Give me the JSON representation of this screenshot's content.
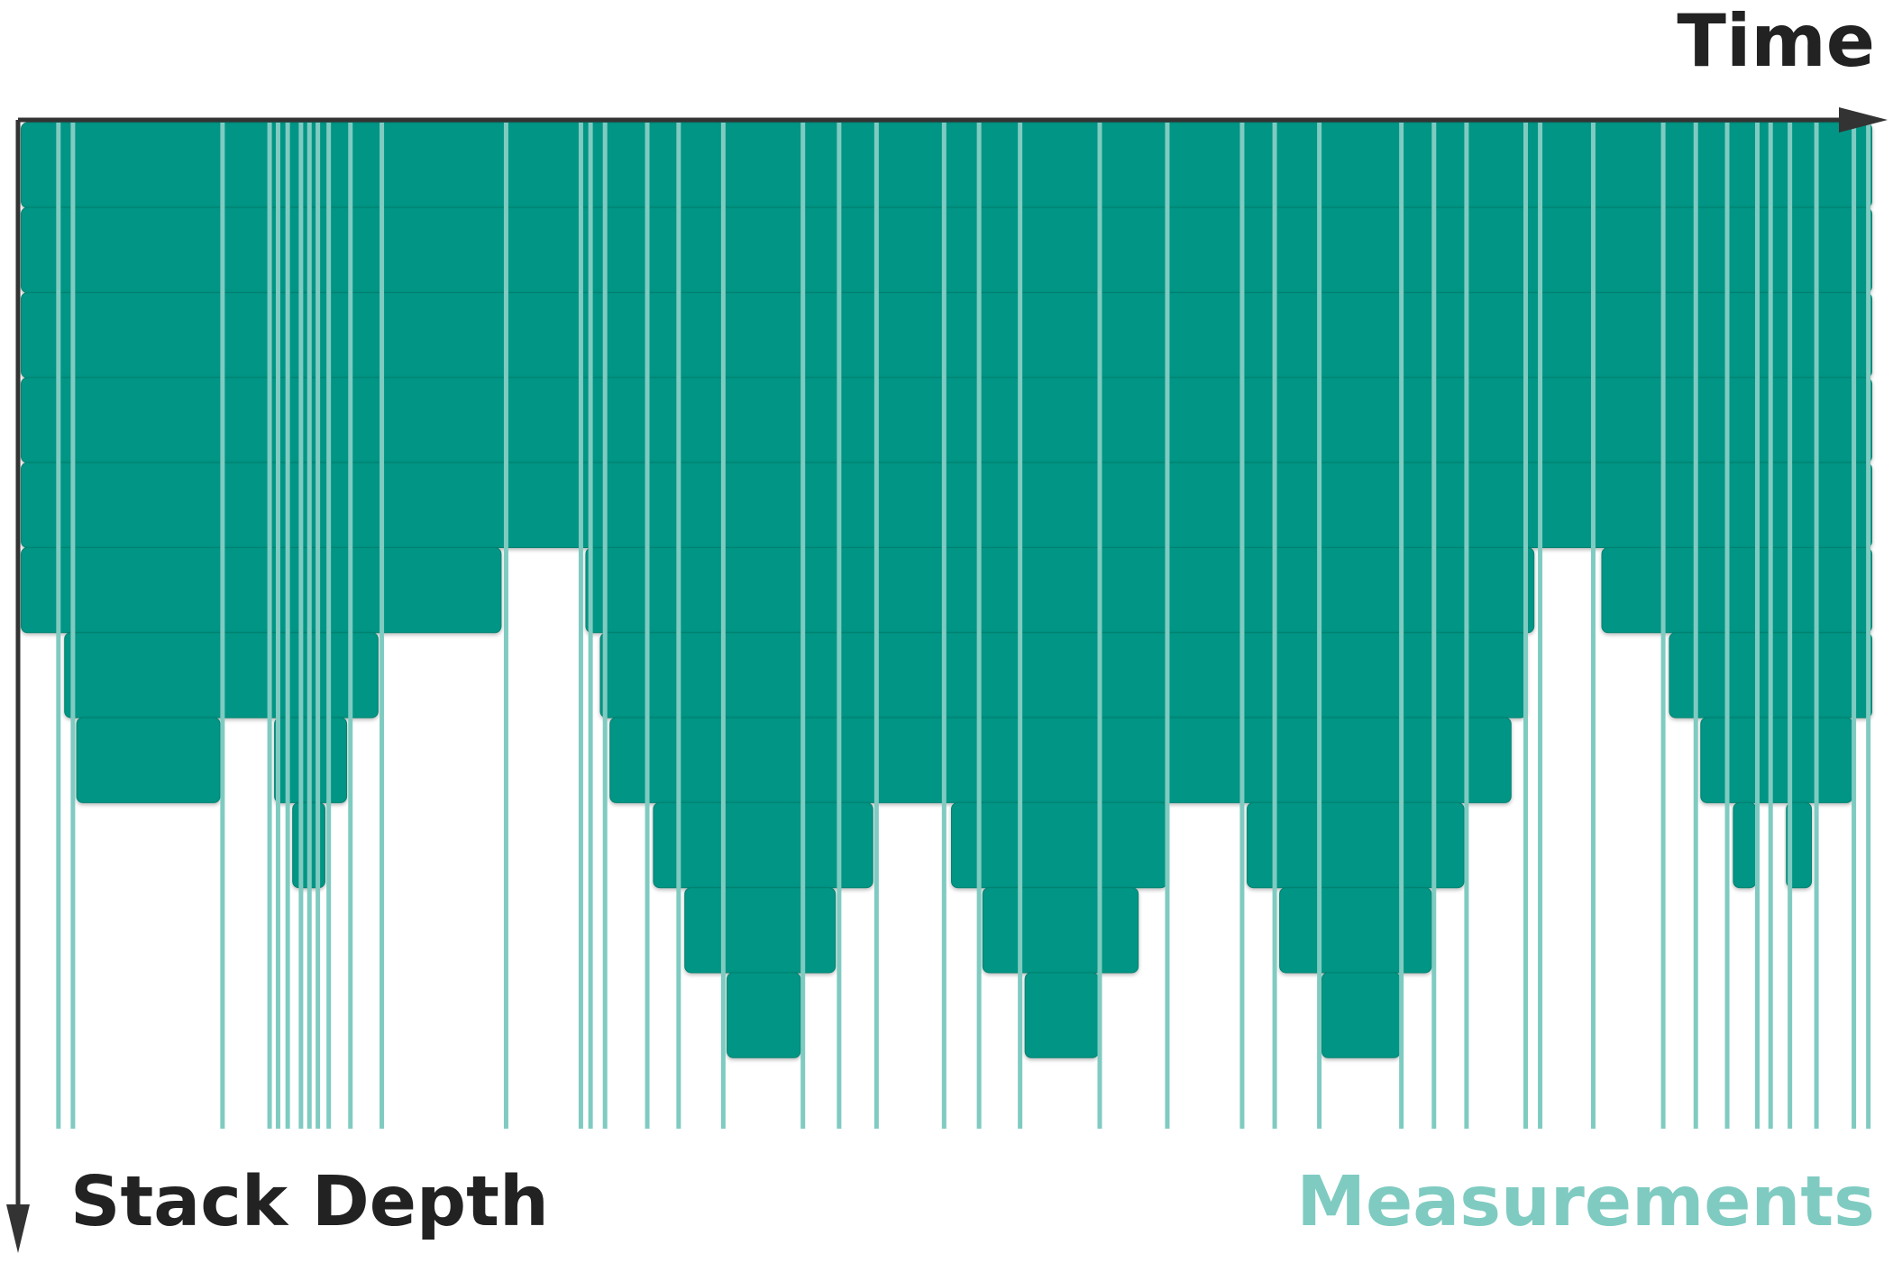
{
  "labels": {
    "time": "Time",
    "stack_depth": "Stack Depth",
    "measurements": "Measurements"
  },
  "colors": {
    "frame": "#009585",
    "frame_edge": "#00816f",
    "measurement": "#7fcbc1",
    "axis": "#333333",
    "text": "#222222"
  },
  "time_extent": [
    0,
    1536
  ],
  "max_depth": 11,
  "frames": [
    {
      "depth": 0,
      "start": 0,
      "end": 1536
    },
    {
      "depth": 1,
      "start": 0,
      "end": 1536
    },
    {
      "depth": 2,
      "start": 0,
      "end": 1536
    },
    {
      "depth": 3,
      "start": 0,
      "end": 1536
    },
    {
      "depth": 4,
      "start": 0,
      "end": 1536
    },
    {
      "depth": 5,
      "start": 0,
      "end": 400
    },
    {
      "depth": 5,
      "start": 468,
      "end": 1256
    },
    {
      "depth": 5,
      "start": 1310,
      "end": 1536
    },
    {
      "depth": 6,
      "start": 36,
      "end": 298
    },
    {
      "depth": 6,
      "start": 480,
      "end": 1250
    },
    {
      "depth": 6,
      "start": 1366,
      "end": 1536
    },
    {
      "depth": 7,
      "start": 46,
      "end": 167
    },
    {
      "depth": 7,
      "start": 210,
      "end": 272
    },
    {
      "depth": 7,
      "start": 488,
      "end": 1237
    },
    {
      "depth": 7,
      "start": 1392,
      "end": 1520
    },
    {
      "depth": 8,
      "start": 225,
      "end": 254
    },
    {
      "depth": 8,
      "start": 524,
      "end": 708
    },
    {
      "depth": 8,
      "start": 771,
      "end": 952
    },
    {
      "depth": 8,
      "start": 1016,
      "end": 1198
    },
    {
      "depth": 8,
      "start": 1419,
      "end": 1440
    },
    {
      "depth": 8,
      "start": 1463,
      "end": 1486
    },
    {
      "depth": 9,
      "start": 550,
      "end": 677
    },
    {
      "depth": 9,
      "start": 797,
      "end": 928
    },
    {
      "depth": 9,
      "start": 1043,
      "end": 1171
    },
    {
      "depth": 10,
      "start": 585,
      "end": 648
    },
    {
      "depth": 10,
      "start": 832,
      "end": 895
    },
    {
      "depth": 10,
      "start": 1078,
      "end": 1145
    }
  ],
  "measurements": [
    32,
    44,
    168,
    207,
    214,
    222,
    233,
    240,
    247,
    256,
    274,
    300,
    403,
    465,
    473,
    485,
    520,
    546,
    583,
    649,
    679,
    710,
    766,
    795,
    829,
    895,
    951,
    1013,
    1040,
    1077,
    1145,
    1172,
    1199,
    1248,
    1260,
    1304,
    1362,
    1389,
    1415,
    1440,
    1451,
    1467,
    1489,
    1520,
    1532
  ]
}
